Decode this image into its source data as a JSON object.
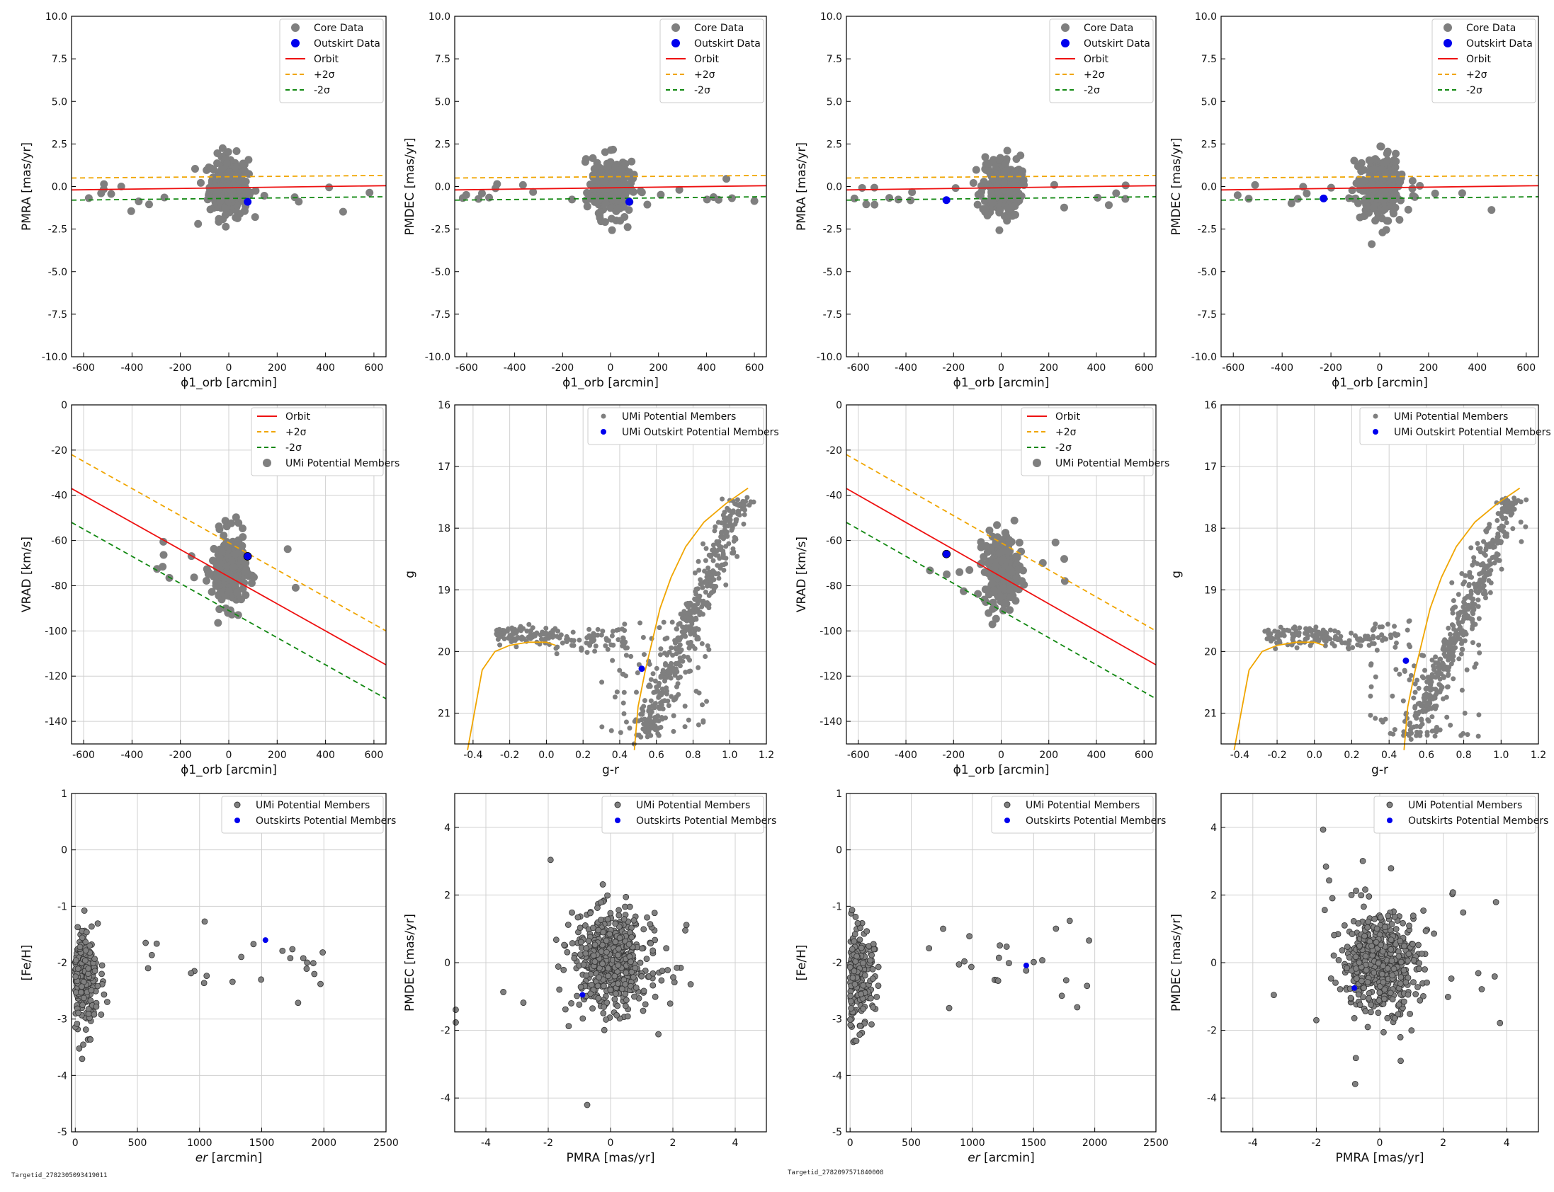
{
  "footnotes": [
    "Targetid_2782305093419011",
    "Targetid_2782097571840008"
  ],
  "colors": {
    "core": "#7f7f7f",
    "outskirt": "#0000ee",
    "orbit": "#ee1111",
    "plus2": "#f0a500",
    "minus2": "#118811",
    "iso": "#f0a500"
  },
  "labels": {
    "phi1": "ϕ1_orb [arcmin]",
    "pmra": "PMRA [mas/yr]",
    "pmdec": "PMDEC [mas/yr]",
    "vrad": "VRAD [km/s]",
    "gr": "g-r",
    "g": "g",
    "er": "er",
    "er_unit": " [arcmin]",
    "feh": "[Fe/H]",
    "pmra2": "PMRA [mas/yr]",
    "pmdec2": "PMDEC [mas/yr]"
  },
  "legend_text": {
    "core": "Core Data",
    "outskirt": "Outskirt Data",
    "orbit": "Orbit",
    "plus2": "+2σ",
    "minus2": "-2σ",
    "umi": "UMi Potential Members",
    "umi_out": "UMi Outskirt Potential Members",
    "outskirts": "Outskirts Potential Members"
  },
  "ticks": {
    "phi1_x": [
      "-600",
      "-400",
      "-200",
      "0",
      "200",
      "400",
      "600"
    ],
    "pm_y": [
      "10.0",
      "7.5",
      "5.0",
      "2.5",
      "0.0",
      "-2.5",
      "-5.0",
      "-7.5",
      "-10.0"
    ],
    "vrad_y": [
      "0",
      "-20",
      "-40",
      "-60",
      "-80",
      "-100",
      "-120",
      "-140"
    ],
    "gr_x": [
      "-0.4",
      "-0.2",
      "0.0",
      "0.2",
      "0.4",
      "0.6",
      "0.8",
      "1.0",
      "1.2"
    ],
    "g_y": [
      "16",
      "17",
      "18",
      "19",
      "20",
      "21"
    ],
    "er_x": [
      "0",
      "500",
      "1000",
      "1500",
      "2000",
      "2500"
    ],
    "feh_y": [
      "1",
      "0",
      "-1",
      "-2",
      "-3",
      "-4",
      "-5"
    ],
    "pm2_x": [
      "-4",
      "-2",
      "0",
      "2",
      "4"
    ],
    "pm2_y": [
      "4",
      "2",
      "0",
      "-2",
      "-4"
    ]
  },
  "chart_data": [
    {
      "id": "r1c1",
      "type": "scatter",
      "xlim": [
        -650,
        650
      ],
      "ylim": [
        -10,
        10
      ],
      "xlabel": "ϕ1_orb [arcmin]",
      "ylabel": "PMRA [mas/yr]",
      "outskirt": [
        [
          78,
          -0.9
        ]
      ],
      "orbit": [
        -0.2,
        0.05
      ],
      "plus2": [
        0.5,
        0.65
      ],
      "minus2": [
        -0.8,
        -0.6
      ]
    },
    {
      "id": "r1c2",
      "type": "scatter",
      "xlim": [
        -650,
        650
      ],
      "ylim": [
        -10,
        10
      ],
      "xlabel": "ϕ1_orb [arcmin]",
      "ylabel": "PMDEC [mas/yr]",
      "outskirt": [
        [
          78,
          -0.9
        ]
      ],
      "orbit": [
        -0.2,
        0.05
      ],
      "plus2": [
        0.5,
        0.65
      ],
      "minus2": [
        -0.8,
        -0.6
      ]
    },
    {
      "id": "r1c3",
      "type": "scatter",
      "xlim": [
        -650,
        650
      ],
      "ylim": [
        -10,
        10
      ],
      "xlabel": "ϕ1_orb [arcmin]",
      "ylabel": "PMRA [mas/yr]",
      "outskirt": [
        [
          -230,
          -0.8
        ]
      ],
      "orbit": [
        -0.2,
        0.05
      ],
      "plus2": [
        0.5,
        0.65
      ],
      "minus2": [
        -0.8,
        -0.6
      ]
    },
    {
      "id": "r1c4",
      "type": "scatter",
      "xlim": [
        -650,
        650
      ],
      "ylim": [
        -10,
        10
      ],
      "xlabel": "ϕ1_orb [arcmin]",
      "ylabel": "PMDEC [mas/yr]",
      "outskirt": [
        [
          -230,
          -0.7
        ]
      ],
      "orbit": [
        -0.2,
        0.05
      ],
      "plus2": [
        0.5,
        0.65
      ],
      "minus2": [
        -0.8,
        -0.6
      ]
    },
    {
      "id": "r2c1",
      "type": "scatter",
      "xlim": [
        -650,
        650
      ],
      "ylim": [
        -150,
        0
      ],
      "xlabel": "ϕ1_orb [arcmin]",
      "ylabel": "VRAD [km/s]",
      "outskirt": [
        [
          78,
          -67
        ]
      ],
      "orbit": [
        -37,
        -115
      ],
      "plus2": [
        -22,
        -100
      ],
      "minus2": [
        -52,
        -130
      ]
    },
    {
      "id": "r2c2",
      "type": "scatter",
      "xlim": [
        -0.5,
        1.2
      ],
      "ylim": [
        21.5,
        16
      ],
      "xlabel": "g-r",
      "ylabel": "g",
      "outskirt": [
        [
          0.52,
          20.28
        ]
      ]
    },
    {
      "id": "r2c3",
      "type": "scatter",
      "xlim": [
        -650,
        650
      ],
      "ylim": [
        -150,
        0
      ],
      "xlabel": "ϕ1_orb [arcmin]",
      "ylabel": "VRAD [km/s]",
      "outskirt": [
        [
          -230,
          -66
        ]
      ],
      "orbit": [
        -37,
        -115
      ],
      "plus2": [
        -22,
        -100
      ],
      "minus2": [
        -52,
        -130
      ]
    },
    {
      "id": "r2c4",
      "type": "scatter",
      "xlim": [
        -0.5,
        1.2
      ],
      "ylim": [
        21.5,
        16
      ],
      "xlabel": "g-r",
      "ylabel": "g",
      "outskirt": [
        [
          0.49,
          20.15
        ]
      ]
    },
    {
      "id": "r3c1",
      "type": "scatter",
      "xlim": [
        -30,
        2500
      ],
      "ylim": [
        -5,
        1
      ],
      "xlabel": "er [arcmin]",
      "ylabel": "[Fe/H]",
      "outskirt": [
        [
          1530,
          -1.6
        ]
      ]
    },
    {
      "id": "r3c2",
      "type": "scatter",
      "xlim": [
        -5,
        5
      ],
      "ylim": [
        -5,
        5
      ],
      "xlabel": "PMRA [mas/yr]",
      "ylabel": "PMDEC [mas/yr]",
      "outskirt": [
        [
          -0.9,
          -0.95
        ]
      ]
    },
    {
      "id": "r3c3",
      "type": "scatter",
      "xlim": [
        -30,
        2500
      ],
      "ylim": [
        -5,
        1
      ],
      "xlabel": "er [arcmin]",
      "ylabel": "[Fe/H]",
      "outskirt": [
        [
          1440,
          -2.05
        ]
      ]
    },
    {
      "id": "r3c4",
      "type": "scatter",
      "xlim": [
        -5,
        5
      ],
      "ylim": [
        -5,
        5
      ],
      "xlabel": "PMRA [mas/yr]",
      "ylabel": "PMDEC [mas/yr]",
      "outskirt": [
        [
          -0.8,
          -0.75
        ]
      ]
    }
  ]
}
